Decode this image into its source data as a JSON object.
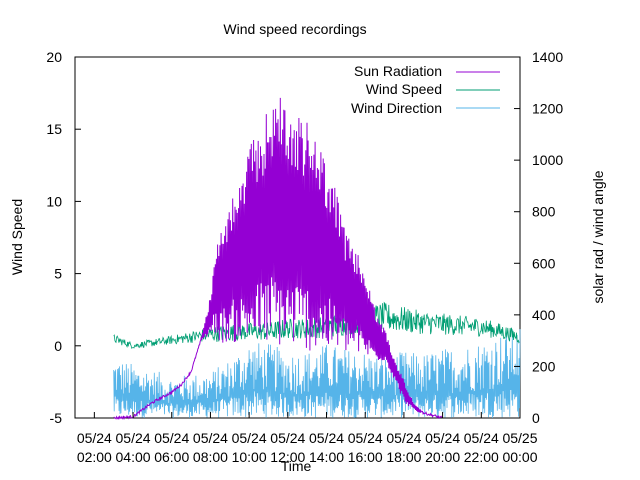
{
  "chart_data": {
    "type": "line",
    "title": "Wind speed recordings",
    "xlabel": "Time",
    "ylabel_left": "Wind Speed",
    "ylabel_right": "solar rad / wind angle",
    "ylim_left": [
      -5,
      20
    ],
    "ylim_right": [
      0,
      1400
    ],
    "x_tick_labels": [
      [
        "05/24",
        "02:00"
      ],
      [
        "05/24",
        "04:00"
      ],
      [
        "05/24",
        "06:00"
      ],
      [
        "05/24",
        "08:00"
      ],
      [
        "05/24",
        "10:00"
      ],
      [
        "05/24",
        "12:00"
      ],
      [
        "05/24",
        "14:00"
      ],
      [
        "05/24",
        "16:00"
      ],
      [
        "05/24",
        "18:00"
      ],
      [
        "05/24",
        "20:00"
      ],
      [
        "05/24",
        "22:00"
      ],
      [
        "05/25",
        "00:00"
      ]
    ],
    "y_left_ticks": [
      "-5",
      "0",
      "5",
      "10",
      "15",
      "20"
    ],
    "y_right_ticks": [
      "0",
      "200",
      "400",
      "600",
      "800",
      "1000",
      "1200",
      "1400"
    ],
    "grid": false,
    "legend_position": "top-right",
    "series": [
      {
        "name": "Sun Radiation",
        "axis": "right",
        "color": "#9400d3",
        "x_hours": [
          3.0,
          4.0,
          5.0,
          6.0,
          6.5,
          7.0,
          7.5,
          8.0,
          8.25,
          8.5,
          9.0,
          9.5,
          10.0,
          10.5,
          11.0,
          11.5,
          12.0,
          12.5,
          13.0,
          13.5,
          14.0,
          14.5,
          15.0,
          15.5,
          16.0,
          16.5,
          17.0,
          17.5,
          18.0,
          18.5,
          19.0,
          20.0
        ],
        "upper": [
          0,
          5,
          60,
          100,
          130,
          180,
          300,
          480,
          650,
          720,
          840,
          900,
          1050,
          1120,
          1200,
          1290,
          1200,
          1170,
          1150,
          1080,
          1000,
          880,
          720,
          650,
          580,
          420,
          350,
          230,
          150,
          60,
          20,
          0
        ],
        "lower": [
          0,
          5,
          60,
          100,
          130,
          180,
          300,
          320,
          330,
          290,
          290,
          290,
          290,
          280,
          280,
          270,
          270,
          270,
          260,
          250,
          250,
          250,
          250,
          250,
          230,
          220,
          220,
          150,
          60,
          30,
          10,
          0
        ]
      },
      {
        "name": "Wind Speed",
        "axis": "left",
        "color": "#009e73",
        "x_hours": [
          3.0,
          4.0,
          5.0,
          6.0,
          7.0,
          8.0,
          9.0,
          10.0,
          11.0,
          12.0,
          13.0,
          14.0,
          15.0,
          16.0,
          17.0,
          18.0,
          19.0,
          20.0,
          21.0,
          22.0,
          23.0,
          24.0
        ],
        "values": [
          0.5,
          0.0,
          0.2,
          0.4,
          0.6,
          0.8,
          0.9,
          1.0,
          1.0,
          1.2,
          1.2,
          1.3,
          1.5,
          1.9,
          2.0,
          1.8,
          1.6,
          1.5,
          1.4,
          1.3,
          1.0,
          0.6
        ],
        "spread": [
          0.6,
          0.4,
          0.5,
          0.6,
          0.8,
          1.1,
          1.2,
          1.2,
          1.3,
          1.4,
          1.4,
          1.5,
          1.6,
          1.9,
          2.0,
          1.8,
          1.6,
          1.5,
          1.4,
          1.3,
          1.1,
          0.9
        ]
      },
      {
        "name": "Wind Direction",
        "axis": "right",
        "color": "#56b4e9",
        "x_hours": [
          3.0,
          4.0,
          5.0,
          6.0,
          7.0,
          8.0,
          9.0,
          10.0,
          11.0,
          12.0,
          13.0,
          14.0,
          15.0,
          16.0,
          17.0,
          18.0,
          19.0,
          20.0,
          21.0,
          22.0,
          23.0,
          24.0
        ],
        "min": [
          0,
          0,
          0,
          0,
          0,
          0,
          0,
          0,
          0,
          0,
          0,
          0,
          0,
          0,
          0,
          0,
          0,
          0,
          0,
          0,
          0,
          0
        ],
        "max": [
          240,
          210,
          190,
          160,
          170,
          180,
          230,
          300,
          290,
          260,
          260,
          290,
          270,
          260,
          240,
          260,
          250,
          270,
          280,
          300,
          330,
          360
        ]
      }
    ]
  }
}
